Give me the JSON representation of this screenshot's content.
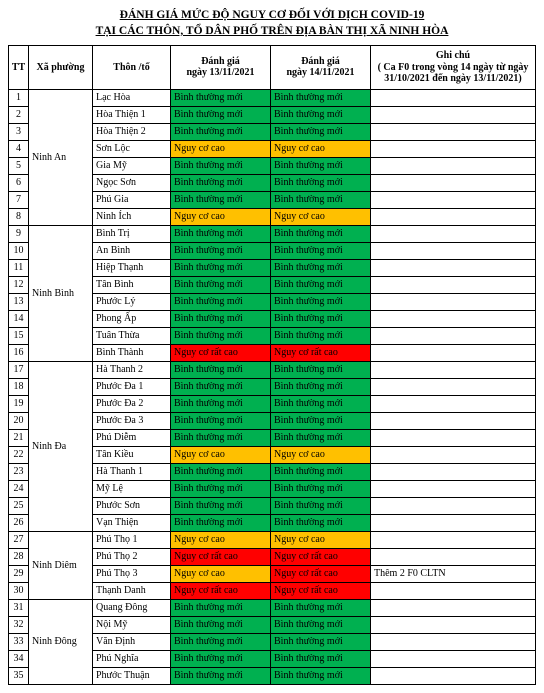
{
  "title_line1": "ĐÁNH GIÁ MỨC ĐỘ NGUY CƠ ĐỐI VỚI DỊCH COVID-19",
  "title_line2": "TẠI CÁC THÔN, TỔ DÂN PHỐ TRÊN ĐỊA BÀN THỊ XÃ NINH HÒA",
  "headers": {
    "tt": "TT",
    "xa": "Xã phường",
    "thon": "Thôn /tổ",
    "dg1": "Đánh giá\nngày 13/11/2021",
    "dg2": "Đánh giá\nngày 14/11/2021",
    "note": "Ghi chú\n( Ca F0 trong vòng 14 ngày từ ngày 31/10/2021 đến ngày 13/11/2021)"
  },
  "status_colors": {
    "binh_thuong_moi": "#00b050",
    "nguy_co_cao": "#ffc000",
    "nguy_co_rat_cao": "#ff0000"
  },
  "labels": {
    "binh_thuong_moi": "Bình thường mới",
    "nguy_co_cao": "Nguy cơ cao",
    "nguy_co_rat_cao": "Nguy cơ rất cao"
  },
  "groups": [
    {
      "xa": "Ninh An",
      "rows": [
        {
          "tt": 1,
          "thon": "Lạc Hòa",
          "s1": "binh_thuong_moi",
          "s2": "binh_thuong_moi",
          "note": ""
        },
        {
          "tt": 2,
          "thon": "Hòa Thiện 1",
          "s1": "binh_thuong_moi",
          "s2": "binh_thuong_moi",
          "note": ""
        },
        {
          "tt": 3,
          "thon": "Hòa Thiện 2",
          "s1": "binh_thuong_moi",
          "s2": "binh_thuong_moi",
          "note": ""
        },
        {
          "tt": 4,
          "thon": "Sơn Lộc",
          "s1": "nguy_co_cao",
          "s2": "nguy_co_cao",
          "note": ""
        },
        {
          "tt": 5,
          "thon": "Gia Mỹ",
          "s1": "binh_thuong_moi",
          "s2": "binh_thuong_moi",
          "note": ""
        },
        {
          "tt": 6,
          "thon": "Ngọc Sơn",
          "s1": "binh_thuong_moi",
          "s2": "binh_thuong_moi",
          "note": ""
        },
        {
          "tt": 7,
          "thon": "Phú Gia",
          "s1": "binh_thuong_moi",
          "s2": "binh_thuong_moi",
          "note": ""
        },
        {
          "tt": 8,
          "thon": "Ninh Ích",
          "s1": "nguy_co_cao",
          "s2": "nguy_co_cao",
          "note": ""
        }
      ]
    },
    {
      "xa": "Ninh Bình",
      "rows": [
        {
          "tt": 9,
          "thon": "Bình Trị",
          "s1": "binh_thuong_moi",
          "s2": "binh_thuong_moi",
          "note": ""
        },
        {
          "tt": 10,
          "thon": "An Bình",
          "s1": "binh_thuong_moi",
          "s2": "binh_thuong_moi",
          "note": ""
        },
        {
          "tt": 11,
          "thon": "Hiệp Thạnh",
          "s1": "binh_thuong_moi",
          "s2": "binh_thuong_moi",
          "note": ""
        },
        {
          "tt": 12,
          "thon": "Tân Bình",
          "s1": "binh_thuong_moi",
          "s2": "binh_thuong_moi",
          "note": ""
        },
        {
          "tt": 13,
          "thon": "Phước Lý",
          "s1": "binh_thuong_moi",
          "s2": "binh_thuong_moi",
          "note": ""
        },
        {
          "tt": 14,
          "thon": "Phong Ấp",
          "s1": "binh_thuong_moi",
          "s2": "binh_thuong_moi",
          "note": ""
        },
        {
          "tt": 15,
          "thon": "Tuân Thừa",
          "s1": "binh_thuong_moi",
          "s2": "binh_thuong_moi",
          "note": ""
        },
        {
          "tt": 16,
          "thon": "Bình Thành",
          "s1": "nguy_co_rat_cao",
          "s2": "nguy_co_rat_cao",
          "note": ""
        }
      ]
    },
    {
      "xa": "Ninh Đa",
      "rows": [
        {
          "tt": 17,
          "thon": "Hà Thanh 2",
          "s1": "binh_thuong_moi",
          "s2": "binh_thuong_moi",
          "note": ""
        },
        {
          "tt": 18,
          "thon": "Phước Đa 1",
          "s1": "binh_thuong_moi",
          "s2": "binh_thuong_moi",
          "note": ""
        },
        {
          "tt": 19,
          "thon": "Phước Đa 2",
          "s1": "binh_thuong_moi",
          "s2": "binh_thuong_moi",
          "note": ""
        },
        {
          "tt": 20,
          "thon": "Phước Đa 3",
          "s1": "binh_thuong_moi",
          "s2": "binh_thuong_moi",
          "note": ""
        },
        {
          "tt": 21,
          "thon": "Phú Diễm",
          "s1": "binh_thuong_moi",
          "s2": "binh_thuong_moi",
          "note": ""
        },
        {
          "tt": 22,
          "thon": "Tân Kiều",
          "s1": "nguy_co_cao",
          "s2": "nguy_co_cao",
          "note": ""
        },
        {
          "tt": 23,
          "thon": "Hà Thanh 1",
          "s1": "binh_thuong_moi",
          "s2": "binh_thuong_moi",
          "note": ""
        },
        {
          "tt": 24,
          "thon": "Mỹ Lệ",
          "s1": "binh_thuong_moi",
          "s2": "binh_thuong_moi",
          "note": ""
        },
        {
          "tt": 25,
          "thon": "Phước Sơn",
          "s1": "binh_thuong_moi",
          "s2": "binh_thuong_moi",
          "note": ""
        },
        {
          "tt": 26,
          "thon": "Vạn Thiện",
          "s1": "binh_thuong_moi",
          "s2": "binh_thuong_moi",
          "note": ""
        }
      ]
    },
    {
      "xa": "Ninh Diêm",
      "rows": [
        {
          "tt": 27,
          "thon": "Phú Thọ 1",
          "s1": "nguy_co_cao",
          "s2": "nguy_co_cao",
          "note": ""
        },
        {
          "tt": 28,
          "thon": "Phú Thọ 2",
          "s1": "nguy_co_rat_cao",
          "s2": "nguy_co_rat_cao",
          "note": ""
        },
        {
          "tt": 29,
          "thon": "Phú Thọ 3",
          "s1": "nguy_co_cao",
          "s2": "nguy_co_rat_cao",
          "note": "Thêm 2 F0 CLTN"
        },
        {
          "tt": 30,
          "thon": "Thạnh Danh",
          "s1": "nguy_co_rat_cao",
          "s2": "nguy_co_rat_cao",
          "note": ""
        }
      ]
    },
    {
      "xa": "Ninh Đông",
      "rows": [
        {
          "tt": 31,
          "thon": "Quang Đông",
          "s1": "binh_thuong_moi",
          "s2": "binh_thuong_moi",
          "note": ""
        },
        {
          "tt": 32,
          "thon": "Nội Mỹ",
          "s1": "binh_thuong_moi",
          "s2": "binh_thuong_moi",
          "note": ""
        },
        {
          "tt": 33,
          "thon": "Văn Định",
          "s1": "binh_thuong_moi",
          "s2": "binh_thuong_moi",
          "note": ""
        },
        {
          "tt": 34,
          "thon": "Phú Nghĩa",
          "s1": "binh_thuong_moi",
          "s2": "binh_thuong_moi",
          "note": ""
        },
        {
          "tt": 35,
          "thon": "Phước Thuận",
          "s1": "binh_thuong_moi",
          "s2": "binh_thuong_moi",
          "note": ""
        }
      ]
    }
  ]
}
